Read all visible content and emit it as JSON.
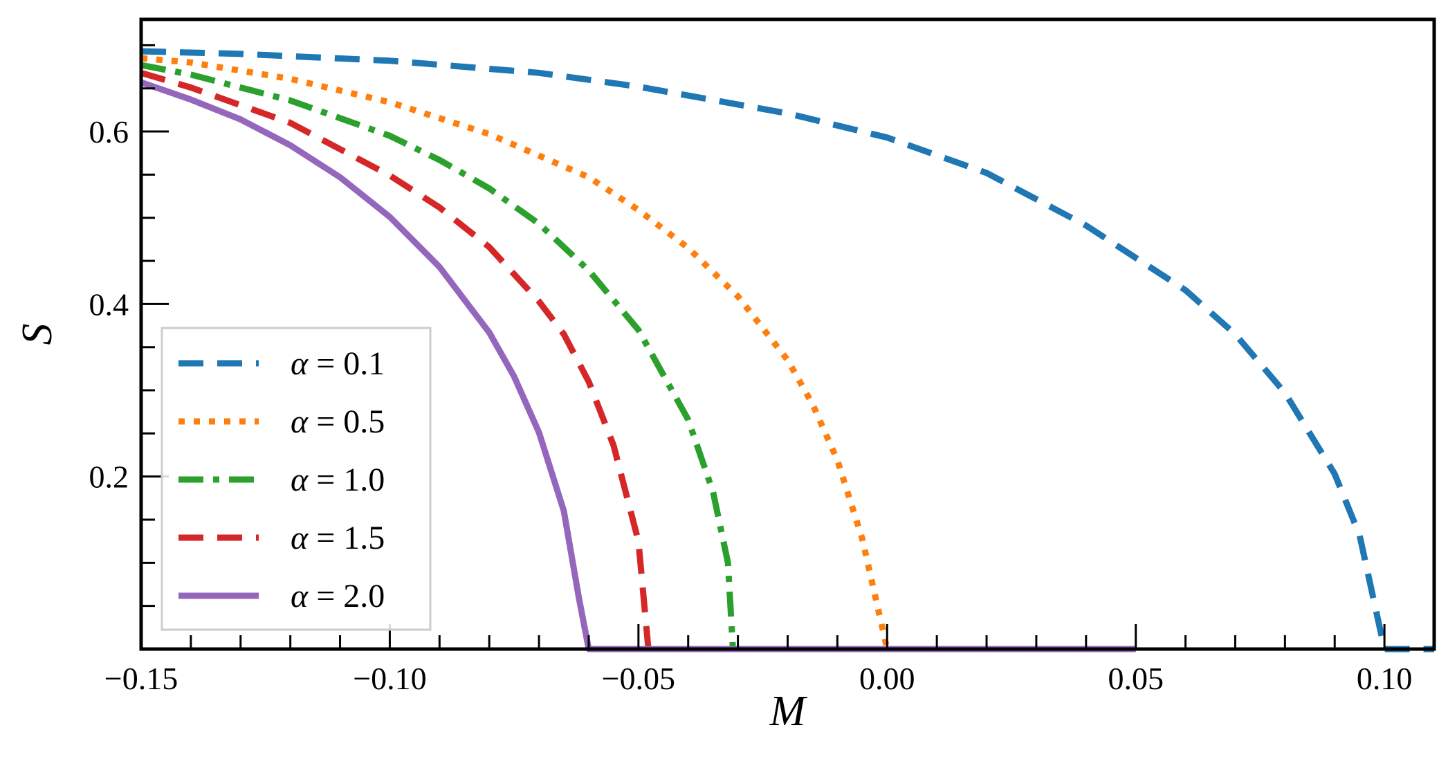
{
  "chart_data": {
    "type": "line",
    "xlabel": "M",
    "ylabel": "S",
    "xlim": [
      -0.15,
      0.11
    ],
    "ylim": [
      0.0,
      0.73
    ],
    "x_ticks": [
      {
        "value": -0.15,
        "label": "−0.15"
      },
      {
        "value": -0.1,
        "label": "−0.10"
      },
      {
        "value": -0.05,
        "label": "−0.05"
      },
      {
        "value": 0.0,
        "label": "0.00"
      },
      {
        "value": 0.05,
        "label": "0.05"
      },
      {
        "value": 0.1,
        "label": "0.10"
      }
    ],
    "y_ticks": [
      {
        "value": 0.2,
        "label": "0.2"
      },
      {
        "value": 0.4,
        "label": "0.4"
      },
      {
        "value": 0.6,
        "label": "0.6"
      }
    ],
    "x_minor_step": 0.01,
    "y_minor_step": 0.05,
    "grid": false,
    "legend_position": "lower-left",
    "series": [
      {
        "name": "α = 0.1",
        "legend_symbol": "α",
        "legend_value": "0.1",
        "color": "#1f77b4",
        "style": "dashed",
        "points": [
          [
            -0.15,
            0.693
          ],
          [
            -0.13,
            0.69
          ],
          [
            -0.1,
            0.682
          ],
          [
            -0.07,
            0.668
          ],
          [
            -0.05,
            0.652
          ],
          [
            -0.02,
            0.621
          ],
          [
            0.0,
            0.593
          ],
          [
            0.02,
            0.552
          ],
          [
            0.04,
            0.491
          ],
          [
            0.06,
            0.416
          ],
          [
            0.07,
            0.365
          ],
          [
            0.08,
            0.297
          ],
          [
            0.09,
            0.203
          ],
          [
            0.095,
            0.132
          ],
          [
            0.1,
            0.0
          ],
          [
            0.11,
            0.0
          ]
        ]
      },
      {
        "name": "α = 0.5",
        "legend_symbol": "α",
        "legend_value": "0.5",
        "color": "#ff7f0e",
        "style": "dotted",
        "points": [
          [
            -0.15,
            0.685
          ],
          [
            -0.14,
            0.68
          ],
          [
            -0.12,
            0.661
          ],
          [
            -0.1,
            0.634
          ],
          [
            -0.08,
            0.597
          ],
          [
            -0.06,
            0.547
          ],
          [
            -0.05,
            0.509
          ],
          [
            -0.04,
            0.465
          ],
          [
            -0.03,
            0.409
          ],
          [
            -0.02,
            0.335
          ],
          [
            -0.015,
            0.284
          ],
          [
            -0.01,
            0.219
          ],
          [
            -0.005,
            0.128
          ],
          [
            0.0,
            0.0
          ],
          [
            0.05,
            0.0
          ]
        ]
      },
      {
        "name": "α = 1.0",
        "legend_symbol": "α",
        "legend_value": "1.0",
        "color": "#2ca02c",
        "style": "dashdot",
        "points": [
          [
            -0.15,
            0.677
          ],
          [
            -0.14,
            0.666
          ],
          [
            -0.12,
            0.636
          ],
          [
            -0.1,
            0.595
          ],
          [
            -0.09,
            0.567
          ],
          [
            -0.08,
            0.534
          ],
          [
            -0.07,
            0.493
          ],
          [
            -0.06,
            0.439
          ],
          [
            -0.05,
            0.37
          ],
          [
            -0.04,
            0.266
          ],
          [
            -0.035,
            0.182
          ],
          [
            -0.032,
            0.1
          ],
          [
            -0.031,
            0.0
          ],
          [
            0.0,
            0.0
          ]
        ]
      },
      {
        "name": "α = 1.5",
        "legend_symbol": "α",
        "legend_value": "1.5",
        "color": "#d62728",
        "style": "dashed",
        "points": [
          [
            -0.15,
            0.668
          ],
          [
            -0.14,
            0.651
          ],
          [
            -0.12,
            0.61
          ],
          [
            -0.1,
            0.549
          ],
          [
            -0.09,
            0.512
          ],
          [
            -0.08,
            0.466
          ],
          [
            -0.07,
            0.403
          ],
          [
            -0.065,
            0.365
          ],
          [
            -0.06,
            0.31
          ],
          [
            -0.055,
            0.236
          ],
          [
            -0.05,
            0.125
          ],
          [
            -0.048,
            0.0
          ],
          [
            0.0,
            0.0
          ]
        ]
      },
      {
        "name": "α = 2.0",
        "legend_symbol": "α",
        "legend_value": "2.0",
        "color": "#9467bd",
        "style": "solid",
        "points": [
          [
            -0.15,
            0.657
          ],
          [
            -0.14,
            0.637
          ],
          [
            -0.13,
            0.614
          ],
          [
            -0.12,
            0.584
          ],
          [
            -0.11,
            0.547
          ],
          [
            -0.1,
            0.501
          ],
          [
            -0.09,
            0.443
          ],
          [
            -0.08,
            0.367
          ],
          [
            -0.075,
            0.316
          ],
          [
            -0.07,
            0.251
          ],
          [
            -0.065,
            0.16
          ],
          [
            -0.062,
            0.06
          ],
          [
            -0.06,
            0.0
          ],
          [
            0.05,
            0.0
          ]
        ]
      }
    ]
  }
}
